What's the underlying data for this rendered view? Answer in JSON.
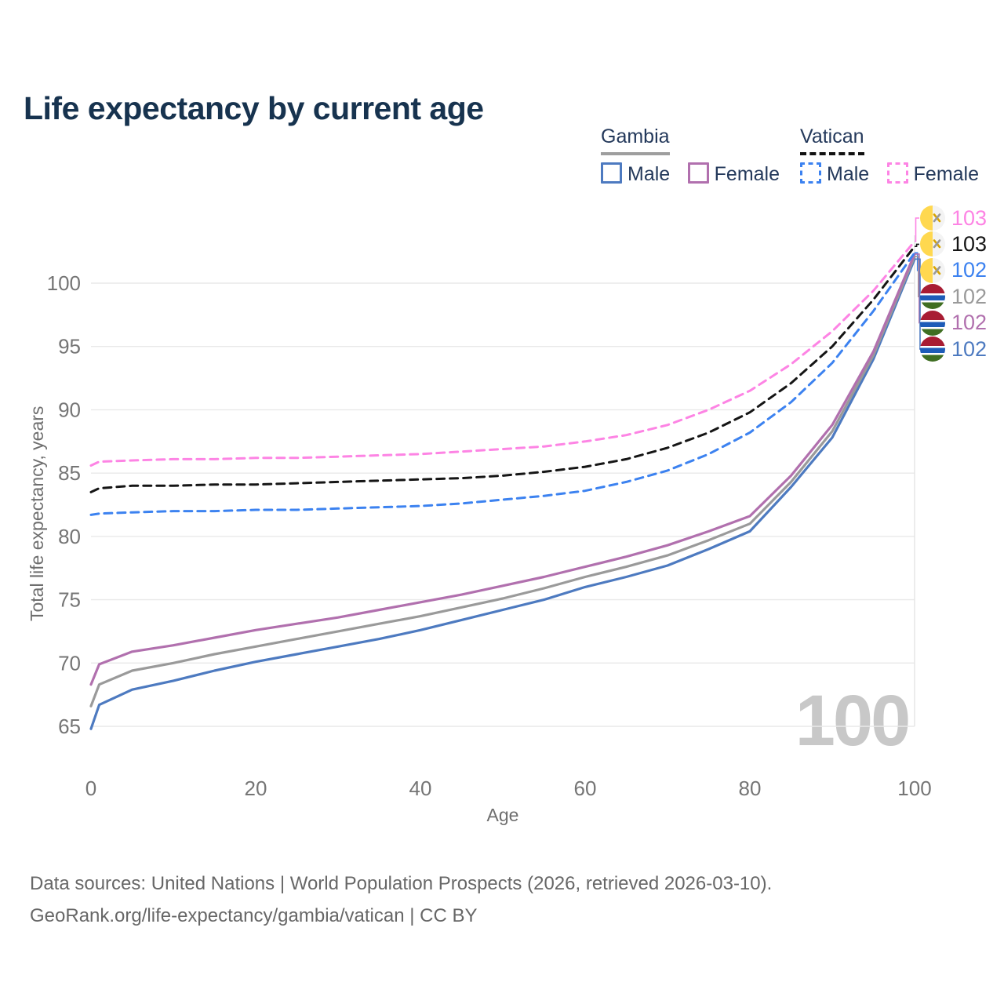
{
  "title": "Life expectancy by current age",
  "legend": {
    "groups": [
      {
        "label": "Gambia",
        "line_style": "solid",
        "items": [
          {
            "label": "Male",
            "series": "gambia_male"
          },
          {
            "label": "Female",
            "series": "gambia_female"
          }
        ]
      },
      {
        "label": "Vatican",
        "line_style": "dashed",
        "items": [
          {
            "label": "Male",
            "series": "vatican_male"
          },
          {
            "label": "Female",
            "series": "vatican_female"
          }
        ]
      }
    ]
  },
  "colors": {
    "title_text": "#17334f",
    "legend_text": "#24395b",
    "axis_text": "#757575",
    "axis_title_text": "#6e6e6e",
    "footer_text": "#676767",
    "gridline": "#e9e9e9",
    "right_gridline": "#e4e4e4",
    "watermark": "#c8c8c8"
  },
  "flags": {
    "vatican": {
      "left": "#ffd84f",
      "right": "#f3f3f3",
      "key_gold": "#d8a400",
      "key_gray": "#9a9a9a"
    },
    "gambia": {
      "red": "#a81c33",
      "blue": "#1e5cb8",
      "green": "#3f6e22",
      "white": "#ffffff"
    }
  },
  "chart_data": {
    "type": "line",
    "title": "Life expectancy by current age",
    "xlabel": "Age",
    "ylabel": "Total life expectancy, years",
    "xlim": [
      0,
      100
    ],
    "ylim": [
      64,
      104
    ],
    "xticks": [
      0,
      20,
      40,
      60,
      80,
      100
    ],
    "yticks": [
      65,
      70,
      75,
      80,
      85,
      90,
      95,
      100
    ],
    "grid": "horizontal",
    "legend_position": "top-right",
    "watermark": "100",
    "x": [
      0,
      1,
      5,
      10,
      15,
      20,
      25,
      30,
      35,
      40,
      45,
      50,
      55,
      60,
      65,
      70,
      75,
      80,
      85,
      90,
      95,
      100
    ],
    "series": [
      {
        "key": "gambia_male",
        "name": "Gambia Male",
        "style": "solid",
        "color": "#4d7ac0",
        "values": [
          64.8,
          66.7,
          67.9,
          68.6,
          69.4,
          70.1,
          70.7,
          71.3,
          71.9,
          72.6,
          73.4,
          74.2,
          75.0,
          76.0,
          76.8,
          77.7,
          79.0,
          80.4,
          83.9,
          87.8,
          94.0,
          101.9
        ]
      },
      {
        "key": "gambia_both",
        "name": "Gambia Both sexes",
        "style": "solid",
        "color": "#9a9a9a",
        "values": [
          66.6,
          68.3,
          69.4,
          70.0,
          70.7,
          71.3,
          71.9,
          72.5,
          73.1,
          73.7,
          74.4,
          75.1,
          75.9,
          76.8,
          77.6,
          78.5,
          79.7,
          81.0,
          84.3,
          88.3,
          94.3,
          102.1
        ]
      },
      {
        "key": "gambia_female",
        "name": "Gambia Female",
        "style": "solid",
        "color": "#b170ae",
        "values": [
          68.3,
          69.9,
          70.9,
          71.4,
          72.0,
          72.6,
          73.1,
          73.6,
          74.2,
          74.8,
          75.4,
          76.1,
          76.8,
          77.6,
          78.4,
          79.3,
          80.4,
          81.6,
          84.8,
          88.8,
          94.6,
          102.3
        ]
      },
      {
        "key": "vatican_male",
        "name": "Vatican Male",
        "style": "dashed",
        "color": "#3c82f0",
        "values": [
          81.7,
          81.8,
          81.9,
          82.0,
          82.0,
          82.1,
          82.1,
          82.2,
          82.3,
          82.4,
          82.6,
          82.9,
          83.2,
          83.6,
          84.3,
          85.2,
          86.5,
          88.2,
          90.6,
          93.7,
          97.8,
          102.4
        ]
      },
      {
        "key": "vatican_both",
        "name": "Vatican Both sexes",
        "style": "dashed",
        "color": "#151515",
        "values": [
          83.5,
          83.8,
          84.0,
          84.0,
          84.1,
          84.1,
          84.2,
          84.3,
          84.4,
          84.5,
          84.6,
          84.8,
          85.1,
          85.5,
          86.1,
          87.0,
          88.2,
          89.8,
          92.1,
          95.0,
          98.7,
          102.9
        ]
      },
      {
        "key": "vatican_female",
        "name": "Vatican Female",
        "style": "dashed",
        "color": "#fd84e4",
        "values": [
          85.6,
          85.9,
          86.0,
          86.1,
          86.1,
          86.2,
          86.2,
          86.3,
          86.4,
          86.5,
          86.7,
          86.9,
          87.1,
          87.5,
          88.0,
          88.8,
          90.0,
          91.5,
          93.6,
          96.2,
          99.4,
          103.3
        ]
      }
    ]
  },
  "end_labels": [
    {
      "series": "vatican_female",
      "flag": "vatican",
      "value": "103"
    },
    {
      "series": "vatican_both",
      "flag": "vatican",
      "value": "103"
    },
    {
      "series": "vatican_male",
      "flag": "vatican",
      "value": "102"
    },
    {
      "series": "gambia_both",
      "flag": "gambia",
      "value": "102"
    },
    {
      "series": "gambia_female",
      "flag": "gambia",
      "value": "102"
    },
    {
      "series": "gambia_male",
      "flag": "gambia",
      "value": "102"
    }
  ],
  "footer": {
    "line1": "Data sources: United Nations | World Population Prospects (2026, retrieved 2026-03-10).",
    "line2": "GeoRank.org/life-expectancy/gambia/vatican | CC BY"
  }
}
